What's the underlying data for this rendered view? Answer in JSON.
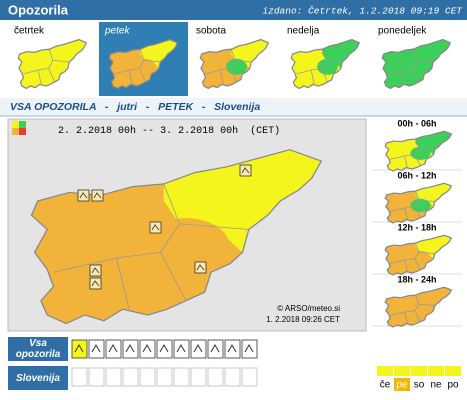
{
  "header": {
    "title": "Opozorila",
    "issued": "izdano: Četrtek, 1.2.2018 09:19 CET"
  },
  "days": [
    {
      "label": "četrtek",
      "highlighted": false,
      "colors": [
        "#f5f51e",
        "#f5f51e",
        "#f5f51e"
      ]
    },
    {
      "label": "petek",
      "highlighted": true,
      "colors": [
        "#f2b33a",
        "#f5f51e",
        "#f2b33a"
      ]
    },
    {
      "label": "sobota",
      "highlighted": false,
      "colors": [
        "#f2b33a",
        "#f5f51e",
        "#3ccf5a"
      ]
    },
    {
      "label": "nedelja",
      "highlighted": false,
      "colors": [
        "#f5f51e",
        "#3ccf5a",
        "#3ccf5a"
      ]
    },
    {
      "label": "ponedeljek",
      "highlighted": false,
      "colors": [
        "#3ccf5a",
        "#3ccf5a",
        "#3ccf5a"
      ]
    }
  ],
  "heading": {
    "all": "VSA OPOZORILA",
    "sep": "-",
    "when": "jutri",
    "day": "PETEK",
    "region": "Slovenija"
  },
  "main_map": {
    "period_from": "2. 2.2018 00h",
    "period_sep": "--",
    "period_to": "3. 2.2018 00h",
    "zone": "(CET)",
    "credit": "© ARSO/meteo.si",
    "timestamp": "1. 2.2018 09:26 CET",
    "legend_colors": [
      "#f5f51e",
      "#3ccf5a",
      "#f2b33a",
      "#e8402a"
    ],
    "colors": [
      "#f2b33a",
      "#f5f51e",
      "#f2b33a"
    ]
  },
  "periods": [
    {
      "label": "00h - 06h",
      "colors": [
        "#f5f51e",
        "#3ccf5a",
        "#3ccf5a"
      ]
    },
    {
      "label": "06h - 12h",
      "colors": [
        "#f2b33a",
        "#f5f51e",
        "#3ccf5a"
      ]
    },
    {
      "label": "12h - 18h",
      "colors": [
        "#f2b33a",
        "#f5f51e",
        "#f2b33a"
      ]
    },
    {
      "label": "18h - 24h",
      "colors": [
        "#f2b33a",
        "#f2b33a",
        "#f2b33a"
      ]
    }
  ],
  "footer": {
    "all_warnings": "Vsa opozorila",
    "region": "Slovenija"
  },
  "day_abbr": [
    {
      "label": "če",
      "color": "#f5f51e"
    },
    {
      "label": "pe",
      "color": "#f2b800"
    },
    {
      "label": "so",
      "color": "#f5f51e"
    },
    {
      "label": "ne",
      "color": "#f5f51e"
    },
    {
      "label": "po",
      "color": "#f5f51e"
    }
  ]
}
